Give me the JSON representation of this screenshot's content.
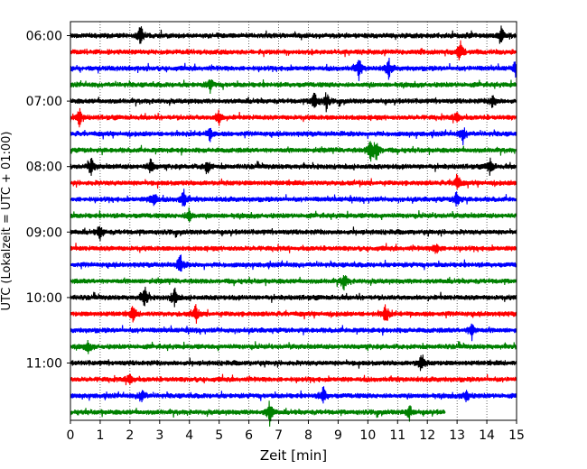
{
  "chart_data": {
    "type": "line",
    "title": "",
    "xlabel": "Zeit  [min]",
    "ylabel": "UTC (Lokalzeit = UTC + 01:00)",
    "xlim": [
      0,
      15
    ],
    "x_ticks": [
      "0",
      "1",
      "2",
      "3",
      "4",
      "5",
      "6",
      "7",
      "8",
      "9",
      "10",
      "11",
      "12",
      "13",
      "14",
      "15"
    ],
    "y_ticks": [
      "06:00",
      "07:00",
      "08:00",
      "09:00",
      "10:00",
      "11:00"
    ],
    "grid": "vertical dotted",
    "legend": "none",
    "trace_interval_minutes": 15,
    "trace_colors": [
      "#000000",
      "#ff0000",
      "#0000ff",
      "#008000"
    ],
    "traces": [
      {
        "start": "06:00",
        "color": "#000000",
        "end_minute": 15,
        "events": [
          [
            2.35,
            0.9
          ],
          [
            14.5,
            0.6
          ]
        ]
      },
      {
        "start": "06:15",
        "color": "#ff0000",
        "end_minute": 15,
        "events": [
          [
            13.1,
            0.9
          ]
        ]
      },
      {
        "start": "06:30",
        "color": "#0000ff",
        "end_minute": 15,
        "events": [
          [
            9.7,
            0.8
          ],
          [
            10.7,
            0.8
          ],
          [
            15.0,
            0.7
          ]
        ]
      },
      {
        "start": "06:45",
        "color": "#008000",
        "end_minute": 15,
        "events": [
          [
            4.7,
            0.5
          ]
        ]
      },
      {
        "start": "07:00",
        "color": "#000000",
        "end_minute": 15,
        "events": [
          [
            8.2,
            0.8
          ],
          [
            8.6,
            0.7
          ],
          [
            14.2,
            0.6
          ]
        ]
      },
      {
        "start": "07:15",
        "color": "#ff0000",
        "end_minute": 15,
        "events": [
          [
            0.3,
            0.7
          ],
          [
            5.0,
            0.6
          ],
          [
            13.0,
            0.6
          ]
        ]
      },
      {
        "start": "07:30",
        "color": "#0000ff",
        "end_minute": 15,
        "events": [
          [
            4.7,
            0.5
          ],
          [
            13.2,
            0.7
          ]
        ]
      },
      {
        "start": "07:45",
        "color": "#008000",
        "end_minute": 15,
        "events": [
          [
            10.1,
            1.0
          ],
          [
            10.3,
            0.9
          ]
        ]
      },
      {
        "start": "08:00",
        "color": "#000000",
        "end_minute": 15,
        "events": [
          [
            0.7,
            0.7
          ],
          [
            2.7,
            0.6
          ],
          [
            4.6,
            0.6
          ],
          [
            14.1,
            0.7
          ]
        ]
      },
      {
        "start": "08:15",
        "color": "#ff0000",
        "end_minute": 15,
        "events": [
          [
            13.0,
            0.7
          ]
        ]
      },
      {
        "start": "08:30",
        "color": "#0000ff",
        "end_minute": 15,
        "events": [
          [
            2.8,
            0.8
          ],
          [
            3.8,
            0.8
          ],
          [
            13.0,
            0.7
          ]
        ]
      },
      {
        "start": "08:45",
        "color": "#008000",
        "end_minute": 15,
        "events": [
          [
            4.0,
            0.6
          ]
        ]
      },
      {
        "start": "09:00",
        "color": "#000000",
        "end_minute": 15,
        "events": [
          [
            1.0,
            0.6
          ]
        ]
      },
      {
        "start": "09:15",
        "color": "#ff0000",
        "end_minute": 15,
        "events": [
          [
            12.3,
            0.5
          ]
        ]
      },
      {
        "start": "09:30",
        "color": "#0000ff",
        "end_minute": 15,
        "events": [
          [
            3.7,
            0.8
          ]
        ]
      },
      {
        "start": "09:45",
        "color": "#008000",
        "end_minute": 15,
        "events": [
          [
            9.2,
            0.7
          ]
        ]
      },
      {
        "start": "10:00",
        "color": "#000000",
        "end_minute": 15,
        "events": [
          [
            2.5,
            0.9
          ],
          [
            3.5,
            0.8
          ]
        ]
      },
      {
        "start": "10:15",
        "color": "#ff0000",
        "end_minute": 15,
        "events": [
          [
            2.1,
            0.6
          ],
          [
            4.2,
            0.7
          ],
          [
            10.6,
            0.8
          ]
        ]
      },
      {
        "start": "10:30",
        "color": "#0000ff",
        "end_minute": 15,
        "events": [
          [
            13.5,
            0.7
          ]
        ]
      },
      {
        "start": "10:45",
        "color": "#008000",
        "end_minute": 15,
        "events": [
          [
            0.6,
            0.5
          ]
        ]
      },
      {
        "start": "11:00",
        "color": "#000000",
        "end_minute": 15,
        "events": [
          [
            11.8,
            0.8
          ]
        ]
      },
      {
        "start": "11:15",
        "color": "#ff0000",
        "end_minute": 15,
        "events": [
          [
            2.0,
            0.6
          ]
        ]
      },
      {
        "start": "11:30",
        "color": "#0000ff",
        "end_minute": 15,
        "events": [
          [
            2.4,
            0.6
          ],
          [
            8.5,
            0.7
          ],
          [
            13.3,
            0.6
          ]
        ]
      },
      {
        "start": "11:45",
        "color": "#008000",
        "end_minute": 12.6,
        "events": [
          [
            6.7,
            1.0
          ],
          [
            11.4,
            0.6
          ]
        ]
      }
    ]
  }
}
